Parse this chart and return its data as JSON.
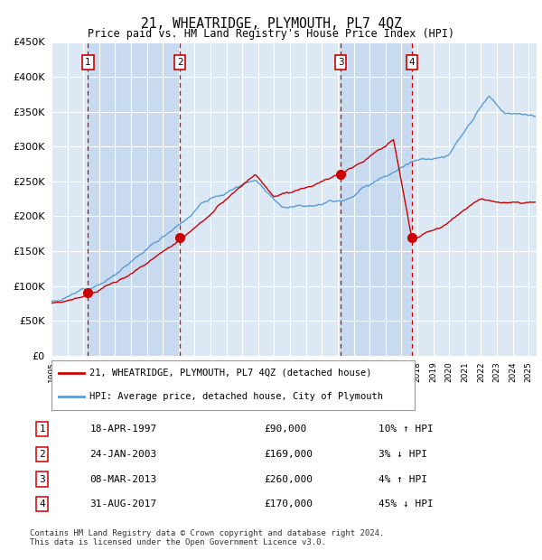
{
  "title": "21, WHEATRIDGE, PLYMOUTH, PL7 4QZ",
  "subtitle": "Price paid vs. HM Land Registry's House Price Index (HPI)",
  "background_color": "#ffffff",
  "plot_bg_color_even": "#dce9f5",
  "plot_bg_color_odd": "#c8daf0",
  "grid_color": "#ffffff",
  "ylim": [
    0,
    450000
  ],
  "yticks": [
    0,
    50000,
    100000,
    150000,
    200000,
    250000,
    300000,
    350000,
    400000,
    450000
  ],
  "xlim_start": 1995.0,
  "xlim_end": 2025.5,
  "sale_events": [
    {
      "label": "1",
      "date_num": 1997.3,
      "price": 90000
    },
    {
      "label": "2",
      "date_num": 2003.07,
      "price": 169000
    },
    {
      "label": "3",
      "date_num": 2013.18,
      "price": 260000
    },
    {
      "label": "4",
      "date_num": 2017.66,
      "price": 170000
    }
  ],
  "hpi_color": "#5b9bd5",
  "price_color": "#cc0000",
  "sale_dot_color": "#cc0000",
  "vline_color": "#cc0000",
  "legend_items": [
    {
      "label": "21, WHEATRIDGE, PLYMOUTH, PL7 4QZ (detached house)",
      "color": "#cc0000"
    },
    {
      "label": "HPI: Average price, detached house, City of Plymouth",
      "color": "#5b9bd5"
    }
  ],
  "table_rows": [
    {
      "num": "1",
      "date": "18-APR-1997",
      "price": "£90,000",
      "pct": "10% ↑ HPI"
    },
    {
      "num": "2",
      "date": "24-JAN-2003",
      "price": "£169,000",
      "pct": "3% ↓ HPI"
    },
    {
      "num": "3",
      "date": "08-MAR-2013",
      "price": "£260,000",
      "pct": "4% ↑ HPI"
    },
    {
      "num": "4",
      "date": "31-AUG-2017",
      "price": "£170,000",
      "pct": "45% ↓ HPI"
    }
  ],
  "footer": "Contains HM Land Registry data © Crown copyright and database right 2024.\nThis data is licensed under the Open Government Licence v3.0.",
  "xtick_years": [
    1995,
    1996,
    1997,
    1998,
    1999,
    2000,
    2001,
    2002,
    2003,
    2004,
    2005,
    2006,
    2007,
    2008,
    2009,
    2010,
    2011,
    2012,
    2013,
    2014,
    2015,
    2016,
    2017,
    2018,
    2019,
    2020,
    2021,
    2022,
    2023,
    2024,
    2025
  ]
}
